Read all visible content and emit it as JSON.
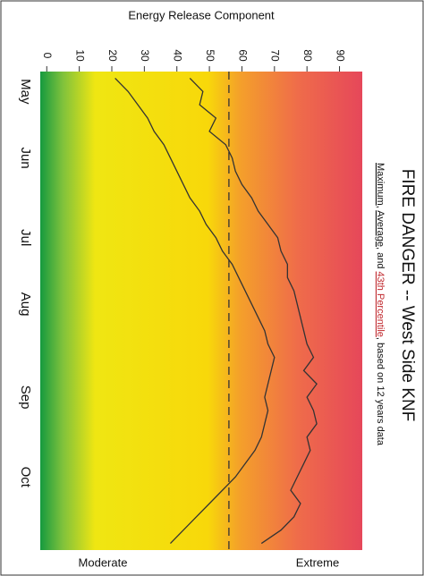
{
  "chart_data": {
    "type": "line",
    "title": "FIRE DANGER -- West Side KNF",
    "value_axis_label": "Energy Release Component",
    "scale_labels": [
      "Moderate",
      "Extreme"
    ],
    "subtitle_joins": [
      ", ",
      ", and ",
      ", based on 12 years data"
    ],
    "categories": [
      null,
      "May",
      null,
      null,
      null,
      null,
      "Jun",
      null,
      null,
      null,
      null,
      null,
      "Jul",
      null,
      null,
      null,
      null,
      "Aug",
      null,
      null,
      null,
      null,
      null,
      null,
      "Sep",
      null,
      null,
      null,
      null,
      null,
      "Oct",
      null,
      null,
      null,
      null,
      null
    ],
    "series": [
      {
        "name": "Maximum",
        "color": "#333333",
        "values": [
          44,
          48,
          47,
          52,
          50,
          55,
          57,
          58,
          60,
          63,
          65,
          68,
          71,
          72,
          74,
          74,
          76,
          77,
          78,
          79,
          80,
          82,
          79,
          83,
          80,
          82,
          83,
          80,
          81,
          79,
          77,
          75,
          78,
          76,
          72,
          66
        ]
      },
      {
        "name": "Average",
        "color": "#333333",
        "values": [
          21,
          25,
          28,
          31,
          33,
          36,
          38,
          40,
          42,
          44,
          47,
          49,
          52,
          54,
          57,
          59,
          61,
          63,
          65,
          67,
          68,
          70,
          69,
          68,
          67,
          68,
          67,
          66,
          64,
          61,
          58,
          54,
          50,
          46,
          42,
          38
        ]
      },
      {
        "name": "43th Percentile",
        "color": "#c0282d",
        "line_color": "#333333",
        "dashed": true,
        "value": 56
      }
    ],
    "ylim": [
      -2,
      97
    ],
    "yticks": [
      0,
      10,
      20,
      30,
      40,
      50,
      60,
      70,
      80,
      90
    ]
  }
}
